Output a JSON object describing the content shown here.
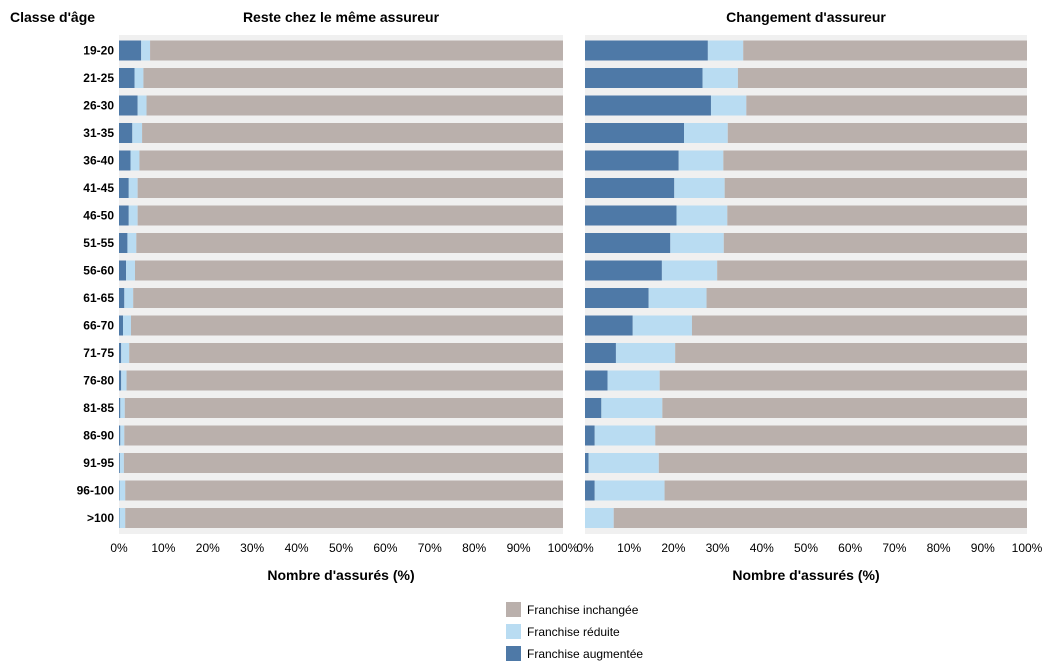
{
  "chart_data": [
    {
      "type": "bar",
      "orientation": "horizontal",
      "stacked": true,
      "title": "Reste chez le même assureur",
      "xlabel": "Nombre d'assurés (%)",
      "ylabel": "Classe d'âge",
      "xlim": [
        0,
        100
      ],
      "x_ticks": [
        "0%",
        "10%",
        "20%",
        "30%",
        "40%",
        "50%",
        "60%",
        "70%",
        "80%",
        "90%",
        "100%"
      ],
      "categories": [
        "19-20",
        "21-25",
        "26-30",
        "31-35",
        "36-40",
        "41-45",
        "46-50",
        "51-55",
        "56-60",
        "61-65",
        "66-70",
        "71-75",
        "76-80",
        "81-85",
        "86-90",
        "91-95",
        "96-100",
        ">100"
      ],
      "series": [
        {
          "name": "Franchise augmentée",
          "color": "#4e79a7",
          "values": [
            5.0,
            3.5,
            4.2,
            3.0,
            2.6,
            2.2,
            2.2,
            1.9,
            1.6,
            1.2,
            0.9,
            0.5,
            0.5,
            0.3,
            0.3,
            0.2,
            0.1,
            0.1
          ]
        },
        {
          "name": "Franchise réduite",
          "color": "#b9dcf2",
          "values": [
            2.0,
            2.0,
            2.0,
            2.2,
            2.0,
            2.0,
            2.0,
            2.0,
            2.0,
            2.0,
            1.8,
            1.8,
            1.2,
            1.0,
            0.9,
            0.9,
            1.3,
            1.3
          ]
        },
        {
          "name": "Franchise inchangée",
          "color": "#bab0ac",
          "values": [
            93.0,
            94.5,
            93.8,
            94.8,
            95.4,
            95.8,
            95.8,
            96.1,
            96.4,
            96.8,
            97.3,
            97.7,
            98.3,
            98.7,
            98.8,
            98.9,
            98.6,
            98.6
          ]
        }
      ]
    },
    {
      "type": "bar",
      "orientation": "horizontal",
      "stacked": true,
      "title": "Changement d'assureur",
      "xlabel": "Nombre d'assurés (%)",
      "xlim": [
        0,
        100
      ],
      "x_ticks": [
        "0%",
        "10%",
        "20%",
        "30%",
        "40%",
        "50%",
        "60%",
        "70%",
        "80%",
        "90%",
        "100%"
      ],
      "categories": [
        "19-20",
        "21-25",
        "26-30",
        "31-35",
        "36-40",
        "41-45",
        "46-50",
        "51-55",
        "56-60",
        "61-65",
        "66-70",
        "71-75",
        "76-80",
        "81-85",
        "86-90",
        "91-95",
        "96-100",
        ">100"
      ],
      "series": [
        {
          "name": "Franchise augmentée",
          "color": "#4e79a7",
          "values": [
            27.8,
            26.6,
            28.5,
            22.4,
            21.2,
            20.2,
            20.7,
            19.3,
            17.4,
            14.4,
            10.8,
            7.0,
            5.1,
            3.7,
            2.2,
            0.8,
            2.2,
            0.0
          ]
        },
        {
          "name": "Franchise réduite",
          "color": "#b9dcf2",
          "values": [
            8.0,
            8.0,
            8.0,
            9.9,
            10.1,
            11.4,
            11.5,
            12.1,
            12.5,
            13.1,
            13.4,
            13.4,
            11.8,
            13.8,
            13.7,
            15.9,
            15.8,
            6.5
          ]
        },
        {
          "name": "Franchise inchangée",
          "color": "#bab0ac",
          "values": [
            64.2,
            65.4,
            63.5,
            67.7,
            68.7,
            68.4,
            67.8,
            68.6,
            70.1,
            72.5,
            75.8,
            79.6,
            83.1,
            82.5,
            84.1,
            83.3,
            82.0,
            93.5
          ]
        }
      ]
    }
  ],
  "legend": {
    "position": "bottom-center",
    "order": [
      "Franchise inchangée",
      "Franchise réduite",
      "Franchise augmentée"
    ]
  }
}
